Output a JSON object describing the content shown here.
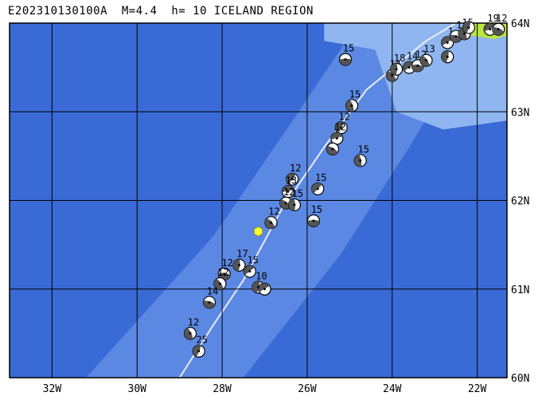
{
  "title": "E202310130100A  M=4.4  h= 10 ICELAND REGION",
  "map": {
    "lon_range": [
      -33,
      -21.3
    ],
    "lat_range": [
      60,
      64
    ],
    "lon_ticks": [
      {
        "lon": -32,
        "label": "32W"
      },
      {
        "lon": -30,
        "label": "30W"
      },
      {
        "lon": -28,
        "label": "28W"
      },
      {
        "lon": -26,
        "label": "26W"
      },
      {
        "lon": -24,
        "label": "24W"
      },
      {
        "lon": -22,
        "label": "22W"
      }
    ],
    "lat_ticks": [
      {
        "lat": 64,
        "label": "64N"
      },
      {
        "lat": 63,
        "label": "63N"
      },
      {
        "lat": 62,
        "label": "62N"
      },
      {
        "lat": 61,
        "label": "61N"
      },
      {
        "lat": 60,
        "label": "60N"
      }
    ],
    "colors": {
      "deep_ocean": "#3a6ad6",
      "mid_ocean": "#5b88e2",
      "shelf": "#8fb6f0",
      "ridge_line": "#e8ecff",
      "land": "#b8e640",
      "event_marker": "#ffff33",
      "grid": "#000000"
    },
    "current_event": {
      "lon": -27.15,
      "lat": 61.65
    },
    "events": [
      {
        "lon": -25.1,
        "lat": 63.59,
        "label": "15"
      },
      {
        "lon": -24.0,
        "lat": 63.41,
        "label": "14"
      },
      {
        "lon": -23.9,
        "lat": 63.48,
        "label": "18"
      },
      {
        "lon": -23.6,
        "lat": 63.5,
        "label": "14"
      },
      {
        "lon": -23.4,
        "lat": 63.52,
        "label": "12"
      },
      {
        "lon": -23.2,
        "lat": 63.58,
        "label": "13"
      },
      {
        "lon": -22.7,
        "lat": 63.62,
        "label": ""
      },
      {
        "lon": -22.7,
        "lat": 63.78,
        "label": "1"
      },
      {
        "lon": -22.5,
        "lat": 63.85,
        "label": "1"
      },
      {
        "lon": -22.3,
        "lat": 63.88,
        "label": "15"
      },
      {
        "lon": -22.2,
        "lat": 63.95,
        "label": ""
      },
      {
        "lon": -21.7,
        "lat": 63.93,
        "label": "19"
      },
      {
        "lon": -21.5,
        "lat": 63.93,
        "label": "12"
      },
      {
        "lon": -24.95,
        "lat": 63.07,
        "label": "15"
      },
      {
        "lon": -25.2,
        "lat": 62.82,
        "label": "12"
      },
      {
        "lon": -25.3,
        "lat": 62.7,
        "label": "12"
      },
      {
        "lon": -25.4,
        "lat": 62.58,
        "label": ""
      },
      {
        "lon": -24.75,
        "lat": 62.45,
        "label": "15"
      },
      {
        "lon": -26.35,
        "lat": 62.24,
        "label": "12"
      },
      {
        "lon": -26.45,
        "lat": 62.1,
        "label": "13"
      },
      {
        "lon": -26.5,
        "lat": 61.97,
        "label": "12"
      },
      {
        "lon": -26.3,
        "lat": 61.95,
        "label": "15"
      },
      {
        "lon": -25.75,
        "lat": 62.13,
        "label": "15"
      },
      {
        "lon": -25.85,
        "lat": 61.77,
        "label": "15"
      },
      {
        "lon": -26.85,
        "lat": 61.75,
        "label": "12"
      },
      {
        "lon": -27.6,
        "lat": 61.27,
        "label": "17"
      },
      {
        "lon": -27.35,
        "lat": 61.2,
        "label": "15"
      },
      {
        "lon": -27.95,
        "lat": 61.17,
        "label": "12"
      },
      {
        "lon": -28.05,
        "lat": 61.06,
        "label": "12"
      },
      {
        "lon": -27.15,
        "lat": 61.02,
        "label": "10"
      },
      {
        "lon": -27.0,
        "lat": 61.0,
        "label": ""
      },
      {
        "lon": -28.3,
        "lat": 60.85,
        "label": "14"
      },
      {
        "lon": -28.75,
        "lat": 60.5,
        "label": "12"
      },
      {
        "lon": -28.55,
        "lat": 60.3,
        "label": "25"
      }
    ]
  }
}
